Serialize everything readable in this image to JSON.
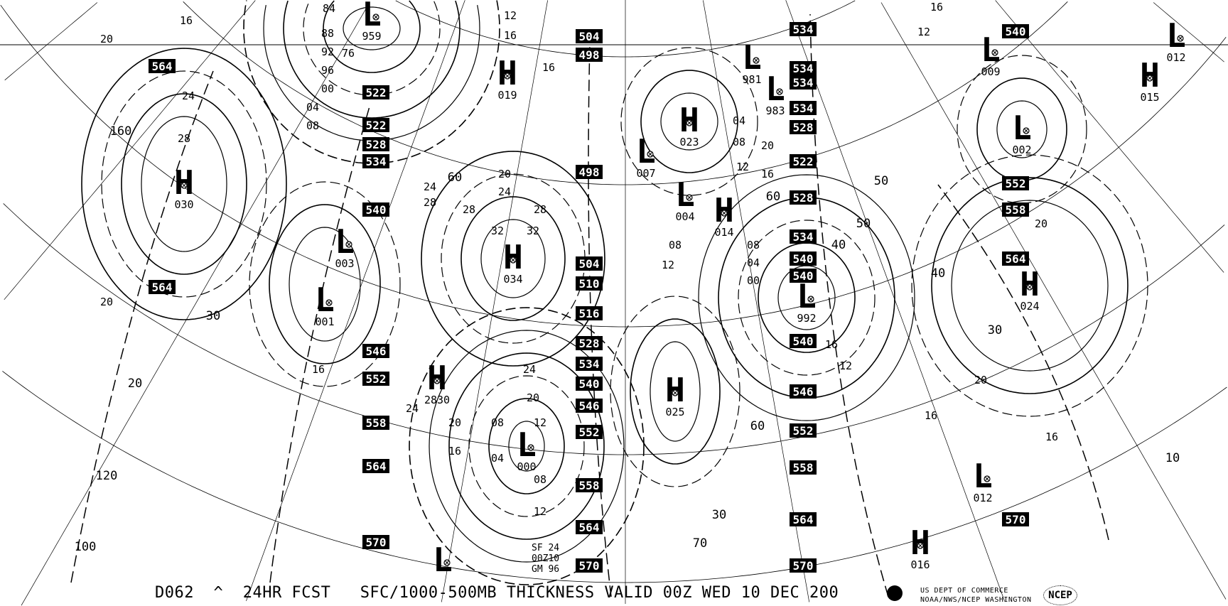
{
  "caption": {
    "product_id": "D062",
    "forecast": "24HR FCST",
    "title": "SFC/1000-500MB THICKNESS VALID 00Z WED 10 DEC 200",
    "agency_line1": "US DEPT OF COMMERCE",
    "agency_line2": "NOAA/NWS/NCEP WASHINGTON",
    "ncep_logo": "NCEP",
    "noaa_logo": "noaa-logo-icon"
  },
  "stamp": {
    "line1": "SF 24",
    "line2": "00Z10",
    "line3": "GM 96"
  },
  "pressure_centers": [
    {
      "type": "H",
      "value": "030"
    },
    {
      "type": "L",
      "value": "003"
    },
    {
      "type": "L",
      "value": "001"
    },
    {
      "type": "L",
      "value": "959"
    },
    {
      "type": "H",
      "value": "019"
    },
    {
      "type": "H",
      "value": "034"
    },
    {
      "type": "H",
      "value": "2830"
    },
    {
      "type": "L",
      "value": "000"
    },
    {
      "type": "H",
      "value": "025"
    },
    {
      "type": "L",
      "value": "007"
    },
    {
      "type": "H",
      "value": "023"
    },
    {
      "type": "L",
      "value": "004"
    },
    {
      "type": "H",
      "value": "014"
    },
    {
      "type": "L",
      "value": "981"
    },
    {
      "type": "L",
      "value": "983"
    },
    {
      "type": "L",
      "value": "009"
    },
    {
      "type": "L",
      "value": "012"
    },
    {
      "type": "H",
      "value": "015"
    },
    {
      "type": "L",
      "value": "002"
    },
    {
      "type": "L",
      "value": "992"
    },
    {
      "type": "H",
      "value": "024"
    },
    {
      "type": "L",
      "value": "012"
    },
    {
      "type": "H",
      "value": "016"
    },
    {
      "type": "L",
      "value": ""
    }
  ],
  "thickness_labels": [
    "564",
    "564",
    "522",
    "522",
    "528",
    "534",
    "540",
    "546",
    "552",
    "558",
    "564",
    "570",
    "504",
    "498",
    "498",
    "504",
    "510",
    "516",
    "528",
    "534",
    "540",
    "546",
    "552",
    "558",
    "564",
    "570",
    "534",
    "534",
    "534",
    "534",
    "528",
    "522",
    "528",
    "534",
    "540",
    "540",
    "540",
    "546",
    "552",
    "558",
    "564",
    "570",
    "540",
    "552",
    "558",
    "564",
    "570"
  ],
  "isobar_labels": [
    "20",
    "16",
    "24",
    "28",
    "20",
    "16",
    "84",
    "88",
    "92",
    "96",
    "00",
    "04",
    "08",
    "76",
    "12",
    "16",
    "16",
    "24",
    "28",
    "28",
    "32",
    "32",
    "20",
    "24",
    "28",
    "24",
    "20",
    "12",
    "08",
    "04",
    "08",
    "12",
    "16",
    "20",
    "24",
    "12",
    "08",
    "04",
    "08",
    "12",
    "16",
    "20",
    "16",
    "12",
    "16",
    "20",
    "20",
    "16",
    "16",
    "12",
    "08",
    "04",
    "00"
  ],
  "grid_labels": [
    "160",
    "120",
    "100",
    "60",
    "50",
    "40",
    "30",
    "30",
    "20",
    "70",
    "60",
    "40",
    "30",
    "10",
    "50",
    "60"
  ]
}
